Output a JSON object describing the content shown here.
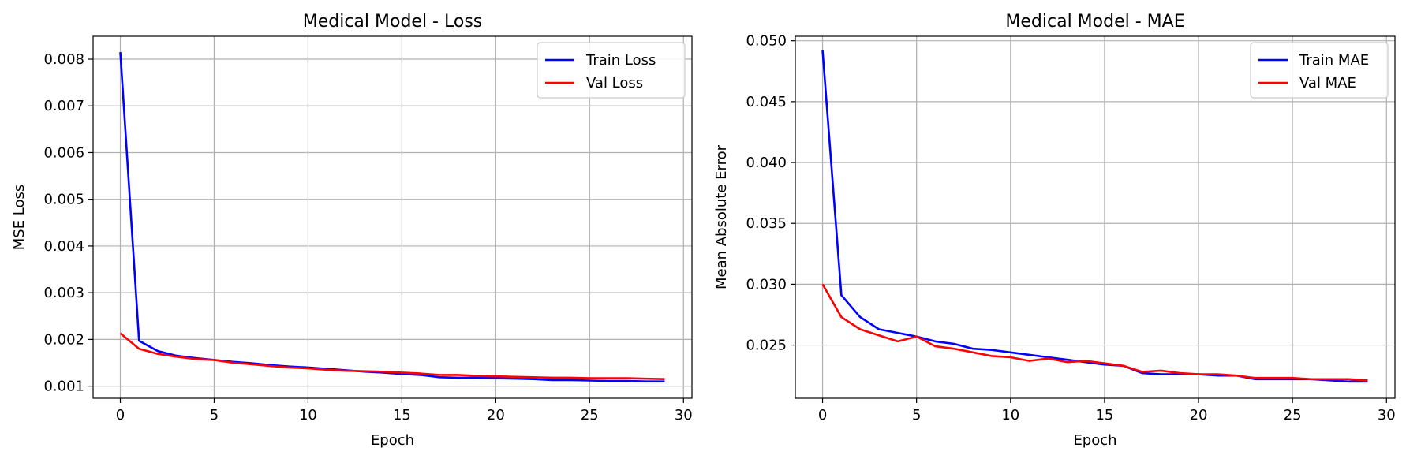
{
  "chart_data": [
    {
      "type": "line",
      "title": "Medical Model - Loss",
      "xlabel": "Epoch",
      "ylabel": "MSE Loss",
      "xlim": [
        -1.45,
        30.45
      ],
      "ylim": [
        0.00074,
        0.00849
      ],
      "xticks": [
        0,
        5,
        10,
        15,
        20,
        25,
        30
      ],
      "yticks": [
        0.001,
        0.002,
        0.003,
        0.004,
        0.005,
        0.006,
        0.007,
        0.008
      ],
      "ytick_labels": [
        "0.001",
        "0.002",
        "0.003",
        "0.004",
        "0.005",
        "0.006",
        "0.007",
        "0.008"
      ],
      "grid": true,
      "legend_position": "top-right",
      "x": [
        0,
        1,
        2,
        3,
        4,
        5,
        6,
        7,
        8,
        9,
        10,
        11,
        12,
        13,
        14,
        15,
        16,
        17,
        18,
        19,
        20,
        21,
        22,
        23,
        24,
        25,
        26,
        27,
        28,
        29
      ],
      "series": [
        {
          "name": "Train Loss",
          "color": "#0000ff",
          "values": [
            0.00815,
            0.00197,
            0.00175,
            0.00165,
            0.0016,
            0.00156,
            0.00152,
            0.00149,
            0.00145,
            0.00142,
            0.0014,
            0.00137,
            0.00134,
            0.00131,
            0.00129,
            0.00126,
            0.00124,
            0.00119,
            0.00118,
            0.00118,
            0.00117,
            0.00116,
            0.00115,
            0.00113,
            0.00113,
            0.00112,
            0.00111,
            0.00111,
            0.0011,
            0.0011
          ]
        },
        {
          "name": "Val Loss",
          "color": "#ff0000",
          "values": [
            0.00213,
            0.0018,
            0.00169,
            0.00163,
            0.00158,
            0.00156,
            0.0015,
            0.00147,
            0.00143,
            0.0014,
            0.00138,
            0.00135,
            0.00133,
            0.00132,
            0.00131,
            0.00129,
            0.00127,
            0.00124,
            0.00124,
            0.00122,
            0.00121,
            0.0012,
            0.00119,
            0.00118,
            0.00118,
            0.00117,
            0.00117,
            0.00117,
            0.00116,
            0.00115
          ]
        }
      ]
    },
    {
      "type": "line",
      "title": "Medical Model - MAE",
      "xlabel": "Epoch",
      "ylabel": "Mean Absolute Error",
      "xlim": [
        -1.45,
        30.45
      ],
      "ylim": [
        0.02063,
        0.05037
      ],
      "xticks": [
        0,
        5,
        10,
        15,
        20,
        25,
        30
      ],
      "yticks": [
        0.025,
        0.03,
        0.035,
        0.04,
        0.045,
        0.05
      ],
      "ytick_labels": [
        "0.025",
        "0.030",
        "0.035",
        "0.040",
        "0.045",
        "0.050"
      ],
      "grid": true,
      "legend_position": "top-right",
      "x": [
        0,
        1,
        2,
        3,
        4,
        5,
        6,
        7,
        8,
        9,
        10,
        11,
        12,
        13,
        14,
        15,
        16,
        17,
        18,
        19,
        20,
        21,
        22,
        23,
        24,
        25,
        26,
        27,
        28,
        29
      ],
      "series": [
        {
          "name": "Train MAE",
          "color": "#0000ff",
          "values": [
            0.0492,
            0.0291,
            0.0273,
            0.0263,
            0.026,
            0.0257,
            0.0253,
            0.0251,
            0.0247,
            0.0246,
            0.0244,
            0.0242,
            0.024,
            0.0238,
            0.0236,
            0.0234,
            0.0233,
            0.0227,
            0.0226,
            0.0226,
            0.0226,
            0.0225,
            0.0225,
            0.0222,
            0.0222,
            0.0222,
            0.0222,
            0.0221,
            0.022,
            0.022
          ]
        },
        {
          "name": "Val MAE",
          "color": "#ff0000",
          "values": [
            0.03,
            0.0273,
            0.0263,
            0.0258,
            0.0253,
            0.0257,
            0.0249,
            0.0247,
            0.0244,
            0.0241,
            0.024,
            0.0237,
            0.0239,
            0.0236,
            0.0237,
            0.0235,
            0.0233,
            0.0228,
            0.0229,
            0.0227,
            0.0226,
            0.0226,
            0.0225,
            0.0223,
            0.0223,
            0.0223,
            0.0222,
            0.0222,
            0.0222,
            0.0221
          ]
        }
      ]
    }
  ]
}
